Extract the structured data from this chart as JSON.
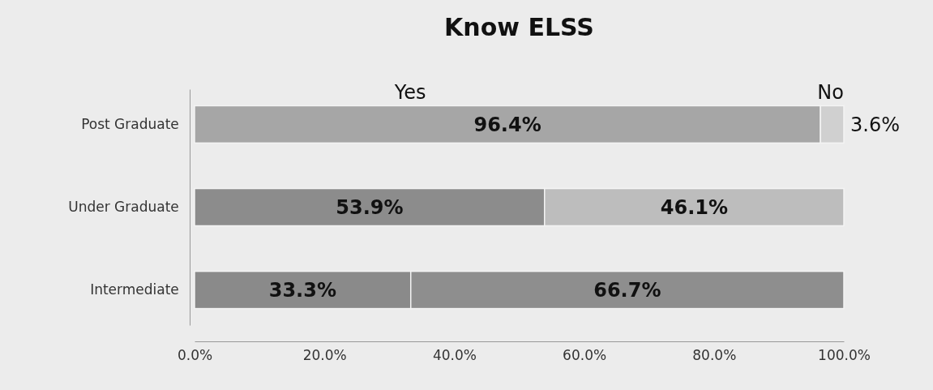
{
  "chart_data": {
    "type": "bar",
    "title": "Know ELSS",
    "orientation": "horizontal",
    "stacked": true,
    "categories": [
      "Post Graduate",
      "Under Graduate",
      "Intermediate"
    ],
    "series": [
      {
        "name": "Yes",
        "colors": [
          "#a6a6a6",
          "#8c8c8c",
          "#8a8a8a"
        ],
        "values": [
          96.4,
          53.9,
          33.3
        ],
        "value_labels": [
          "96.4%",
          "53.9%",
          "33.3%"
        ]
      },
      {
        "name": "No",
        "colors": [
          "#d0d0d0",
          "#bdbdbd",
          "#8e8e8e"
        ],
        "values": [
          3.6,
          46.1,
          66.7
        ],
        "value_labels": [
          "3.6%",
          "46.1%",
          "66.7%"
        ]
      }
    ],
    "xlim": [
      0,
      100
    ],
    "xticks": [
      {
        "value": 0,
        "label": "0.0%"
      },
      {
        "value": 20,
        "label": "20.0%"
      },
      {
        "value": 40,
        "label": "40.0%"
      },
      {
        "value": 60,
        "label": "60.0%"
      },
      {
        "value": 80,
        "label": "80.0%"
      },
      {
        "value": 100,
        "label": "100.0%"
      }
    ]
  }
}
